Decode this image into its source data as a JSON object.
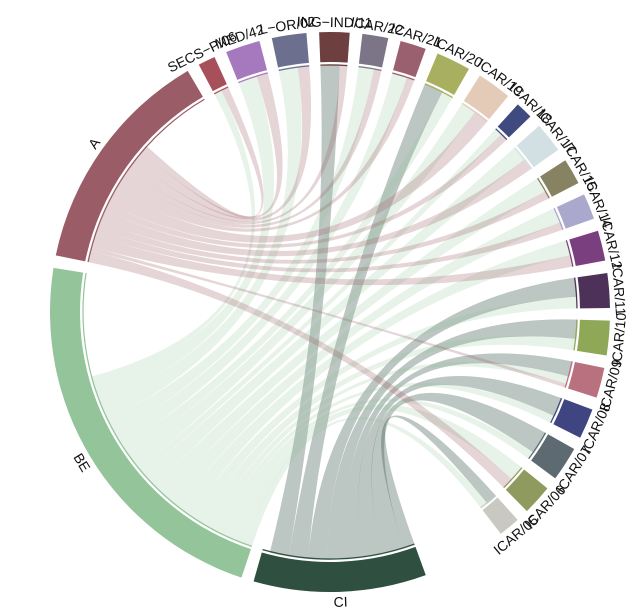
{
  "chart_data": {
    "type": "chord",
    "title": "",
    "groups": [
      {
        "id": "CI",
        "label": "CI",
        "color": "#2f4f40",
        "size": 12
      },
      {
        "id": "BE",
        "label": "BE",
        "color": "#93c49a",
        "size": 27
      },
      {
        "id": "A",
        "label": "A",
        "color": "#9a5c66",
        "size": 16
      },
      {
        "id": "SECS-P/06",
        "label": "SECS−P/06",
        "color": "#a8505a",
        "size": 1.2
      },
      {
        "id": "MED/42",
        "label": "MED/42",
        "color": "#a678bd",
        "size": 2.4
      },
      {
        "id": "L-OR/02",
        "label": "L−OR/02",
        "color": "#6d6f8f",
        "size": 2.4
      },
      {
        "id": "ING-IND/11",
        "label": "ING−IND/11",
        "color": "#6e3f3f",
        "size": 2.1
      },
      {
        "id": "ICAR/22",
        "label": "ICAR/22",
        "color": "#7b7587",
        "size": 1.8
      },
      {
        "id": "ICAR/21",
        "label": "ICAR/21",
        "color": "#9a6070",
        "size": 1.8
      },
      {
        "id": "ICAR/20",
        "label": "ICAR/20",
        "color": "#a8b060",
        "size": 2.4
      },
      {
        "id": "ICAR/19",
        "label": "ICAR/19",
        "color": "#e3cbb8",
        "size": 2.4
      },
      {
        "id": "ICAR/18",
        "label": "ICAR/18",
        "color": "#3f4a80",
        "size": 1.2
      },
      {
        "id": "ICAR/17",
        "label": "ICAR/17",
        "color": "#d2e0e4",
        "size": 2.1
      },
      {
        "id": "ICAR/15",
        "label": "ICAR/15",
        "color": "#878261",
        "size": 1.8
      },
      {
        "id": "ICAR/14",
        "label": "ICAR/14",
        "color": "#aaa8cc",
        "size": 1.8
      },
      {
        "id": "ICAR/12",
        "label": "ICAR/12",
        "color": "#7a3f7f",
        "size": 2.1
      },
      {
        "id": "ICAR/11",
        "label": "ICAR/11",
        "color": "#4d3158",
        "size": 2.4
      },
      {
        "id": "ICAR/10",
        "label": "ICAR/10",
        "color": "#8fa858",
        "size": 2.4
      },
      {
        "id": "ICAR/09",
        "label": "ICAR/09",
        "color": "#b9707f",
        "size": 2.1
      },
      {
        "id": "ICAR/08",
        "label": "ICAR/08",
        "color": "#3f4580",
        "size": 2.1
      },
      {
        "id": "ICAR/07",
        "label": "ICAR/07",
        "color": "#5d6a72",
        "size": 2.4
      },
      {
        "id": "ICAR/06",
        "label": "ICAR/06",
        "color": "#8f9b5e",
        "size": 2.1
      },
      {
        "id": "ICAR/05",
        "label": "ICAR/05",
        "color": "#c9c9c2",
        "size": 1.5
      }
    ],
    "chords": [
      {
        "source": "CI",
        "target": "ICAR/05",
        "value": 0.9
      },
      {
        "source": "CI",
        "target": "ICAR/07",
        "value": 1.8
      },
      {
        "source": "CI",
        "target": "ICAR/08",
        "value": 1.5
      },
      {
        "source": "CI",
        "target": "ICAR/09",
        "value": 1.2
      },
      {
        "source": "CI",
        "target": "ICAR/10",
        "value": 1.5
      },
      {
        "source": "CI",
        "target": "ICAR/11",
        "value": 1.5
      },
      {
        "source": "CI",
        "target": "ICAR/20",
        "value": 1.5
      },
      {
        "source": "CI",
        "target": "ING-IND/11",
        "value": 1.5
      },
      {
        "source": "BE",
        "target": "ICAR/05",
        "value": 0.6
      },
      {
        "source": "BE",
        "target": "ICAR/06",
        "value": 1.2
      },
      {
        "source": "BE",
        "target": "ICAR/07",
        "value": 0.6
      },
      {
        "source": "BE",
        "target": "ICAR/08",
        "value": 0.6
      },
      {
        "source": "BE",
        "target": "ICAR/09",
        "value": 0.6
      },
      {
        "source": "BE",
        "target": "ICAR/10",
        "value": 0.9
      },
      {
        "source": "BE",
        "target": "ICAR/11",
        "value": 0.9
      },
      {
        "source": "BE",
        "target": "ICAR/12",
        "value": 1.2
      },
      {
        "source": "BE",
        "target": "ICAR/14",
        "value": 1.2
      },
      {
        "source": "BE",
        "target": "ICAR/15",
        "value": 1.2
      },
      {
        "source": "BE",
        "target": "ICAR/17",
        "value": 1.2
      },
      {
        "source": "BE",
        "target": "ICAR/18",
        "value": 0.6
      },
      {
        "source": "BE",
        "target": "ICAR/19",
        "value": 1.2
      },
      {
        "source": "BE",
        "target": "ICAR/20",
        "value": 0.9
      },
      {
        "source": "BE",
        "target": "ICAR/21",
        "value": 1.2
      },
      {
        "source": "BE",
        "target": "ICAR/22",
        "value": 1.2
      },
      {
        "source": "BE",
        "target": "L-OR/02",
        "value": 1.5
      },
      {
        "source": "BE",
        "target": "MED/42",
        "value": 1.5
      },
      {
        "source": "BE",
        "target": "SECS-P/06",
        "value": 0.6
      },
      {
        "source": "A",
        "target": "ICAR/06",
        "value": 0.9
      },
      {
        "source": "A",
        "target": "ICAR/09",
        "value": 0.3
      },
      {
        "source": "A",
        "target": "ICAR/12",
        "value": 0.9
      },
      {
        "source": "A",
        "target": "ICAR/14",
        "value": 0.6
      },
      {
        "source": "A",
        "target": "ICAR/15",
        "value": 0.6
      },
      {
        "source": "A",
        "target": "ICAR/17",
        "value": 0.9
      },
      {
        "source": "A",
        "target": "ICAR/18",
        "value": 0.6
      },
      {
        "source": "A",
        "target": "ICAR/19",
        "value": 1.2
      },
      {
        "source": "A",
        "target": "ICAR/21",
        "value": 0.6
      },
      {
        "source": "A",
        "target": "ICAR/22",
        "value": 0.6
      },
      {
        "source": "A",
        "target": "ING-IND/11",
        "value": 0.6
      },
      {
        "source": "A",
        "target": "L-OR/02",
        "value": 0.9
      },
      {
        "source": "A",
        "target": "MED/42",
        "value": 0.9
      },
      {
        "source": "A",
        "target": "SECS-P/06",
        "value": 0.6
      }
    ]
  }
}
